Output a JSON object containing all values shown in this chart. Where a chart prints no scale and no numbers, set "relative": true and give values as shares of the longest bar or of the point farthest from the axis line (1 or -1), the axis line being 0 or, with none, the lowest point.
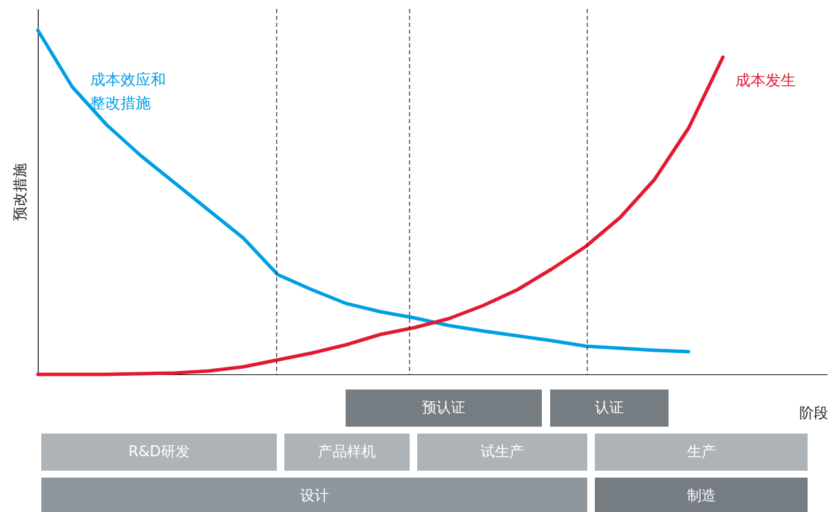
{
  "chart_data": [
    {
      "type": "line",
      "relative": true,
      "xlabel": "阶段",
      "ylabel": "预改措施",
      "categories": [
        null,
        null,
        null,
        null,
        null,
        null,
        null,
        null,
        null,
        null,
        null,
        null,
        null,
        null,
        null,
        null,
        null,
        null,
        null,
        null,
        null
      ],
      "series": [
        {
          "name": "成本效应和整改措施",
          "color": "#009fe3",
          "values": [
            1.0,
            0.836,
            0.726,
            0.636,
            0.556,
            0.476,
            0.396,
            0.29,
            0.246,
            0.206,
            0.182,
            0.164,
            0.142,
            0.126,
            0.112,
            0.098,
            0.082,
            0.076,
            0.07,
            0.066,
            null
          ]
        },
        {
          "name": "成本发生",
          "color": "#e2192f",
          "values": [
            0,
            0,
            0,
            0.002,
            0.004,
            0.01,
            0.022,
            0.042,
            0.062,
            0.086,
            0.116,
            0.136,
            0.162,
            0.2,
            0.246,
            0.306,
            0.372,
            0.456,
            0.566,
            0.716,
            0.922
          ]
        }
      ]
    },
    {
      "type": "other",
      "annotations": [
        "预认证",
        "认证",
        "R&D研发",
        "产品样机",
        "试生产",
        "生产",
        "设计",
        "制造"
      ]
    }
  ]
}
